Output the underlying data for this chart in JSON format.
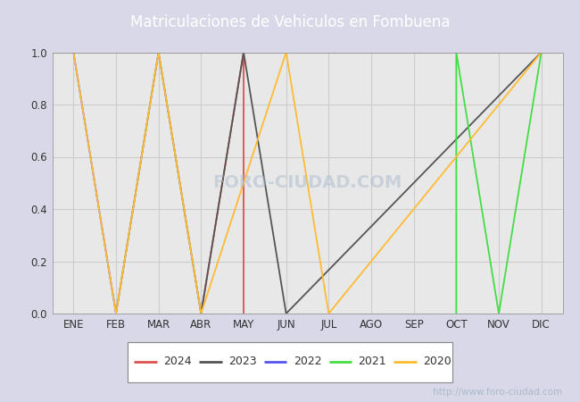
{
  "title": "Matriculaciones de Vehiculos en Fombuena",
  "months": [
    "ENE",
    "FEB",
    "MAR",
    "ABR",
    "MAY",
    "JUN",
    "JUL",
    "AGO",
    "SEP",
    "OCT",
    "NOV",
    "DIC"
  ],
  "month_indices": [
    1,
    2,
    3,
    4,
    5,
    6,
    7,
    8,
    9,
    10,
    11,
    12
  ],
  "series": {
    "2024": {
      "color": "#e05050",
      "points": [
        [
          4,
          0.0
        ],
        [
          5,
          1.0
        ],
        [
          5,
          0.0
        ]
      ]
    },
    "2023": {
      "color": "#555555",
      "points": [
        [
          2,
          0.0
        ],
        [
          3,
          1.0
        ],
        [
          4,
          0.0
        ],
        [
          5,
          1.0
        ],
        [
          6,
          0.0
        ],
        [
          12,
          1.0
        ]
      ]
    },
    "2022": {
      "color": "#5555ee",
      "points": [
        [
          1,
          1.0
        ],
        [
          2,
          0.0
        ]
      ]
    },
    "2021": {
      "color": "#44dd44",
      "points": [
        [
          10,
          0.0
        ],
        [
          10,
          1.0
        ],
        [
          11,
          0.0
        ],
        [
          12,
          1.0
        ]
      ]
    },
    "2020": {
      "color": "#ffbb33",
      "points": [
        [
          1,
          1.0
        ],
        [
          2,
          0.0
        ],
        [
          3,
          1.0
        ],
        [
          4,
          0.0
        ],
        [
          6,
          1.0
        ],
        [
          7,
          0.0
        ],
        [
          12,
          1.0
        ]
      ]
    }
  },
  "ylim": [
    0.0,
    1.0
  ],
  "yticks": [
    0.0,
    0.2,
    0.4,
    0.6,
    0.8,
    1.0
  ],
  "outer_bg_color": "#d8d8e8",
  "plot_bg_color": "#e8e8e8",
  "title_bg_color": "#4477bb",
  "title_color": "white",
  "grid_color": "#cccccc",
  "legend_years": [
    "2024",
    "2023",
    "2022",
    "2021",
    "2020"
  ],
  "watermark": "http://www.foro-ciudad.com",
  "watermark_color": "#aabbcc",
  "tick_color": "#333333",
  "tick_fontsize": 8.5,
  "title_fontsize": 12
}
